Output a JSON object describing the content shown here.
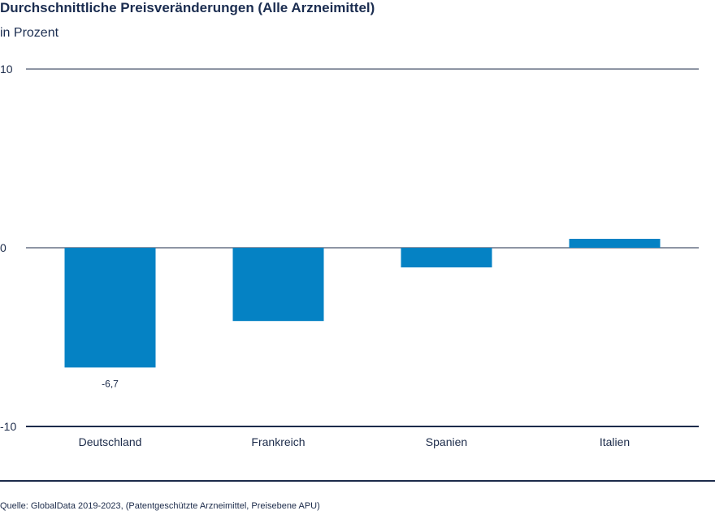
{
  "chart_data": {
    "type": "bar",
    "title": "Durchschnittliche Preisveränderungen (Alle Arzneimittel)",
    "subtitle": "in Prozent",
    "categories": [
      "Deutschland",
      "Frankreich",
      "Spanien",
      "Italien"
    ],
    "values": [
      -6.7,
      -4.1,
      -1.1,
      0.5
    ],
    "data_labels": [
      "-6,7",
      "",
      "",
      ""
    ],
    "ylim": [
      -10,
      10
    ],
    "yticks": [
      10,
      0,
      -10
    ],
    "ytick_labels": [
      "10",
      "0",
      "-10"
    ],
    "xlabel": "",
    "ylabel": "",
    "grid": true,
    "bar_color": "#0582c4",
    "axis_color": "#1c2b4a"
  },
  "source": "Quelle: GlobalData 2019-2023, (Patentgeschützte Arzneimittel, Preisebene APU)"
}
